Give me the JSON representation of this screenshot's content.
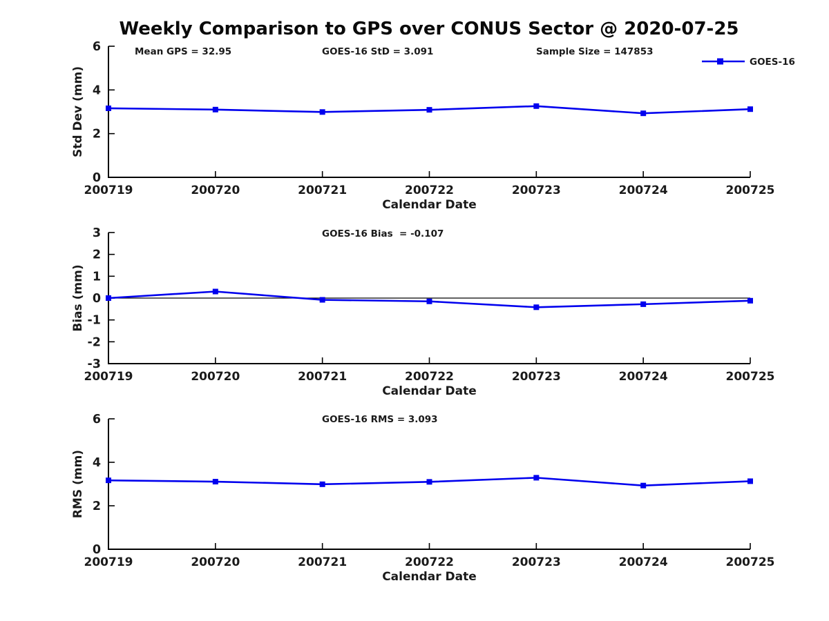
{
  "title": "Weekly Comparison to GPS over CONUS Sector @ 2020-07-25",
  "colors": {
    "line": "#0000ee",
    "axis": "#000000",
    "text": "#1a1a1a",
    "background": "#ffffff"
  },
  "legend": {
    "label": "GOES-16"
  },
  "chart_data": [
    {
      "type": "line",
      "subplot": "std-dev",
      "annotations": [
        "Mean GPS = 32.95",
        "GOES-16 StD = 3.091",
        "Sample Size = 147853"
      ],
      "categories": [
        "200719",
        "200720",
        "200721",
        "200722",
        "200723",
        "200724",
        "200725"
      ],
      "series": [
        {
          "name": "GOES-16",
          "values": [
            3.16,
            3.1,
            2.99,
            3.09,
            3.26,
            2.93,
            3.12
          ]
        }
      ],
      "xlabel": "Calendar Date",
      "ylabel": "Std Dev (mm)",
      "ylim": [
        0,
        6
      ],
      "yticks": [
        0,
        2,
        4,
        6
      ],
      "grid": false,
      "legend_position": "top-right",
      "zero_line": false
    },
    {
      "type": "line",
      "subplot": "bias",
      "annotations": [
        "GOES-16 Bias  = -0.107"
      ],
      "categories": [
        "200719",
        "200720",
        "200721",
        "200722",
        "200723",
        "200724",
        "200725"
      ],
      "series": [
        {
          "name": "GOES-16",
          "values": [
            0.0,
            0.3,
            -0.08,
            -0.15,
            -0.42,
            -0.28,
            -0.12
          ]
        }
      ],
      "xlabel": "Calendar Date",
      "ylabel": "Bias (mm)",
      "ylim": [
        -3,
        3
      ],
      "yticks": [
        -3,
        -2,
        -1,
        0,
        1,
        2,
        3
      ],
      "grid": false,
      "legend_position": "none",
      "zero_line": true
    },
    {
      "type": "line",
      "subplot": "rms",
      "annotations": [
        "GOES-16 RMS = 3.093"
      ],
      "categories": [
        "200719",
        "200720",
        "200721",
        "200722",
        "200723",
        "200724",
        "200725"
      ],
      "series": [
        {
          "name": "GOES-16",
          "values": [
            3.17,
            3.11,
            2.99,
            3.1,
            3.29,
            2.93,
            3.13
          ]
        }
      ],
      "xlabel": "Calendar Date",
      "ylabel": "RMS (mm)",
      "ylim": [
        0,
        6
      ],
      "yticks": [
        0,
        2,
        4,
        6
      ],
      "grid": false,
      "legend_position": "none",
      "zero_line": false
    }
  ]
}
